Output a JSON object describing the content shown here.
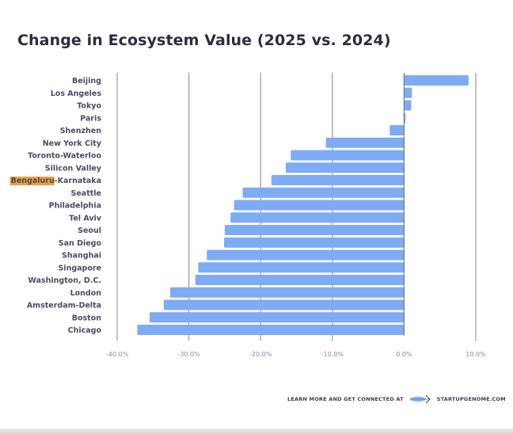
{
  "chart_data": {
    "type": "bar",
    "orientation": "horizontal",
    "title": "Change in Ecosystem Value (2025 vs. 2024)",
    "xlabel": "",
    "ylabel": "",
    "xlim": [
      -40,
      10
    ],
    "xticks": [
      -40,
      -30,
      -20,
      -10,
      0,
      10
    ],
    "tick_labels": [
      "-40.0%",
      "-30.0%",
      "-20.0%",
      "-10.0%",
      "0.0%",
      "10.0%"
    ],
    "grid": "vertical",
    "bar_color": "#7fabf5",
    "categories": [
      "Beijing",
      "Los Angeles",
      "Tokyo",
      "Paris",
      "Shenzhen",
      "New York City",
      "Toronto-Waterloo",
      "Silicon Valley",
      "Bengaluru-Karnataka",
      "Seattle",
      "Philadelphia",
      "Tel Aviv",
      "Seoul",
      "San Diego",
      "Shanghai",
      "Singapore",
      "Washington, D.C.",
      "London",
      "Amsterdam-Delta",
      "Boston",
      "Chicago"
    ],
    "values": [
      9.0,
      1.1,
      1.0,
      0.2,
      -2.0,
      -10.9,
      -15.8,
      -16.5,
      -18.5,
      -22.5,
      -23.7,
      -24.2,
      -25.0,
      -25.1,
      -27.5,
      -28.7,
      -29.1,
      -32.6,
      -33.5,
      -35.5,
      -37.2
    ],
    "highlight": {
      "category": "Bengaluru-Karnataka",
      "text": "Bengaluru",
      "color": "#f0a03a"
    }
  },
  "footer": {
    "cta": "LEARN MORE AND GET CONNECTED AT",
    "site": "STARTUPGENOME.COM"
  }
}
